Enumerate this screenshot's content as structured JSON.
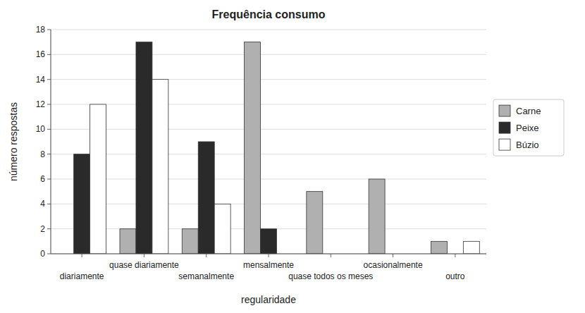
{
  "chart_data": {
    "type": "bar",
    "title": "Frequência consumo",
    "x_label": "regularidade",
    "y_label": "número respostas",
    "categories": [
      "diariamente",
      "quase diariamente",
      "semanalmente",
      "mensalmente",
      "quase todos os meses",
      "ocasionalmente",
      "outro"
    ],
    "series": [
      {
        "name": "Carne",
        "color": "#b0b0b0",
        "values": [
          0,
          2,
          2,
          17,
          5,
          6,
          1
        ]
      },
      {
        "name": "Peixe",
        "color": "#2a2a2a",
        "values": [
          8,
          17,
          9,
          2,
          0,
          0,
          0
        ]
      },
      {
        "name": "Búzio",
        "color": "#ffffff",
        "values": [
          12,
          14,
          4,
          0,
          0,
          0,
          1
        ]
      }
    ],
    "ylim": [
      0,
      18
    ],
    "yticks": [
      0,
      2,
      4,
      6,
      8,
      10,
      12,
      14,
      16,
      18
    ],
    "grid": true,
    "legend": "right"
  }
}
